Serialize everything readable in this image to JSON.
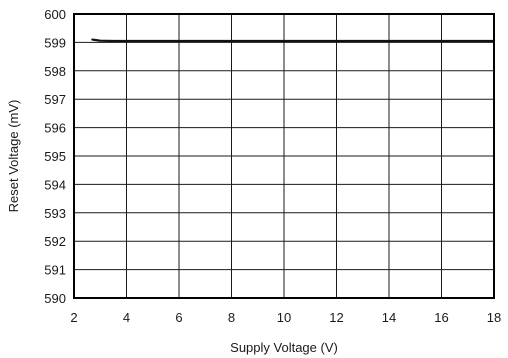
{
  "chart_data": {
    "type": "line",
    "title": "",
    "xlabel": "Supply Voltage (V)",
    "ylabel": "Reset Voltage (mV)",
    "xlim": [
      2,
      18
    ],
    "ylim": [
      590,
      600
    ],
    "xticks": [
      2,
      4,
      6,
      8,
      10,
      12,
      14,
      16,
      18
    ],
    "yticks": [
      590,
      591,
      592,
      593,
      594,
      595,
      596,
      597,
      598,
      599,
      600
    ],
    "grid": true,
    "legend": "none",
    "colors": {
      "line": "#111111",
      "grid": "#1a1a1a",
      "frame": "#000000"
    },
    "series": [
      {
        "x": [
          2.7,
          2.85,
          3.0,
          3.5,
          4,
          6,
          8,
          10,
          12,
          14,
          16,
          18
        ],
        "y": [
          599.1,
          599.08,
          599.06,
          599.05,
          599.05,
          599.05,
          599.05,
          599.05,
          599.05,
          599.05,
          599.05,
          599.05
        ]
      }
    ]
  }
}
